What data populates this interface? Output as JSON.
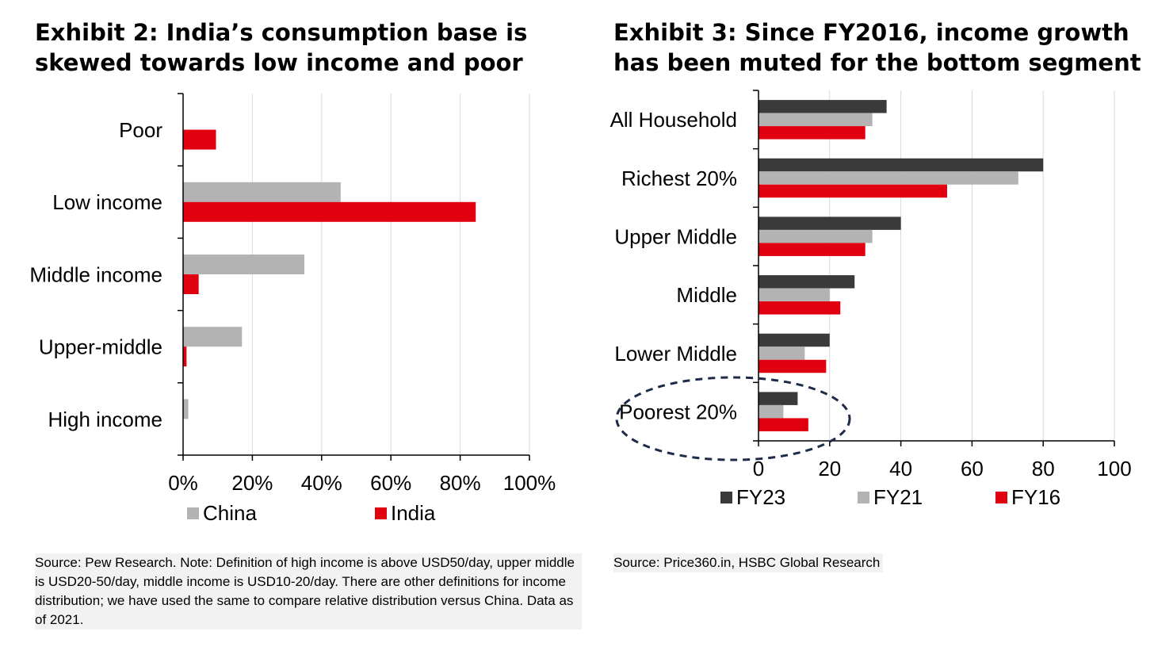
{
  "exhibit2": {
    "title_lines": [
      "Exhibit 2: India’s consumption base is",
      "skewed towards low income and poor"
    ],
    "source": "Source: Pew Research. Note: Definition of high income is above USD50/day, upper middle is USD20-50/day, middle income is USD10-20/day. There are other definitions for income distribution; we have used the same to compare relative distribution versus China. Data as of 2021."
  },
  "exhibit3": {
    "title_lines": [
      "Exhibit 3: Since FY2016, income growth",
      "has been muted for the bottom segment"
    ],
    "source": "Source: Price360.in, HSBC Global Research"
  },
  "chart_data": [
    {
      "id": "exhibit2",
      "type": "bar",
      "orientation": "horizontal",
      "title": "Exhibit 2: India’s consumption base is skewed towards low income and poor",
      "categories": [
        "Poor",
        "Low income",
        "Middle income",
        "Upper-middle",
        "High income"
      ],
      "series": [
        {
          "name": "China",
          "color": "#b3b3b3",
          "values": [
            0,
            45.5,
            35,
            17,
            1.5
          ]
        },
        {
          "name": "India",
          "color": "#e00010",
          "values": [
            9.5,
            84.5,
            4.5,
            1,
            0
          ]
        }
      ],
      "xlim": [
        0,
        100
      ],
      "xticks": [
        0,
        20,
        40,
        60,
        80,
        100
      ],
      "xtick_labels": [
        "0%",
        "20%",
        "40%",
        "60%",
        "80%",
        "100%"
      ],
      "grid": "vertical",
      "legend": "bottom"
    },
    {
      "id": "exhibit3",
      "type": "bar",
      "orientation": "horizontal",
      "title": "Exhibit 3: Since FY2016, income growth has been muted for the bottom segment",
      "categories": [
        "All Household",
        "Richest 20%",
        "Upper Middle",
        "Middle",
        "Lower Middle",
        "Poorest 20%"
      ],
      "series": [
        {
          "name": "FY23",
          "color": "#3a3a3a",
          "values": [
            36,
            80,
            40,
            27,
            20,
            11
          ]
        },
        {
          "name": "FY21",
          "color": "#b3b3b3",
          "values": [
            32,
            73,
            32,
            20,
            13,
            7
          ]
        },
        {
          "name": "FY16",
          "color": "#e00010",
          "values": [
            30,
            53,
            30,
            23,
            19,
            14
          ]
        }
      ],
      "xlim": [
        0,
        100
      ],
      "xticks": [
        0,
        20,
        40,
        60,
        80,
        100
      ],
      "xtick_labels": [
        "0",
        "20",
        "40",
        "60",
        "80",
        "100"
      ],
      "grid": "vertical",
      "legend": "bottom",
      "annotation": "dashed ellipse around Poorest 20%"
    }
  ]
}
